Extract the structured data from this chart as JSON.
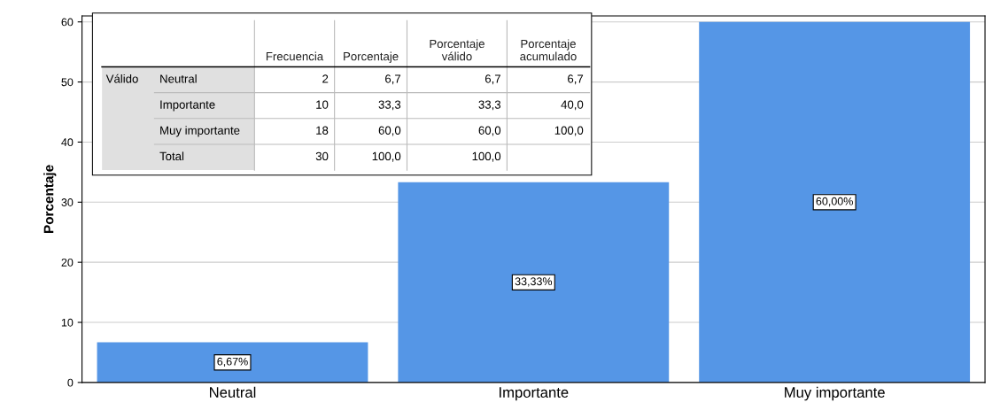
{
  "chart_data": [
    {
      "type": "bar",
      "ylabel": "Porcentaje",
      "categories": [
        "Neutral",
        "Importante",
        "Muy importante"
      ],
      "values": [
        6.67,
        33.33,
        60.0
      ],
      "color": "#5596e6",
      "value_labels": [
        "6,67%",
        "33,33%",
        "60,00%"
      ],
      "ylim": [
        0,
        61
      ],
      "yticks": [
        0,
        10,
        20,
        30,
        40,
        50,
        60
      ],
      "grid": "y"
    },
    {
      "type": "other",
      "ylabel": "Válido",
      "categories": [
        null,
        null,
        "Frecuencia",
        "Porcentaje",
        "Porcentaje\nválido",
        "Porcentaje\nacumulado"
      ],
      "y_categories": [
        "Neutral",
        "Importante",
        "Muy importante",
        "Total"
      ],
      "cell_labels": [
        [
          "2",
          "6,7",
          "6,7",
          "6,7"
        ],
        [
          "10",
          "33,3",
          "33,3",
          "40,0"
        ],
        [
          "18",
          "60,0",
          "60,0",
          "100,0"
        ],
        [
          "30",
          "100,0",
          "100,0",
          null
        ]
      ]
    }
  ]
}
